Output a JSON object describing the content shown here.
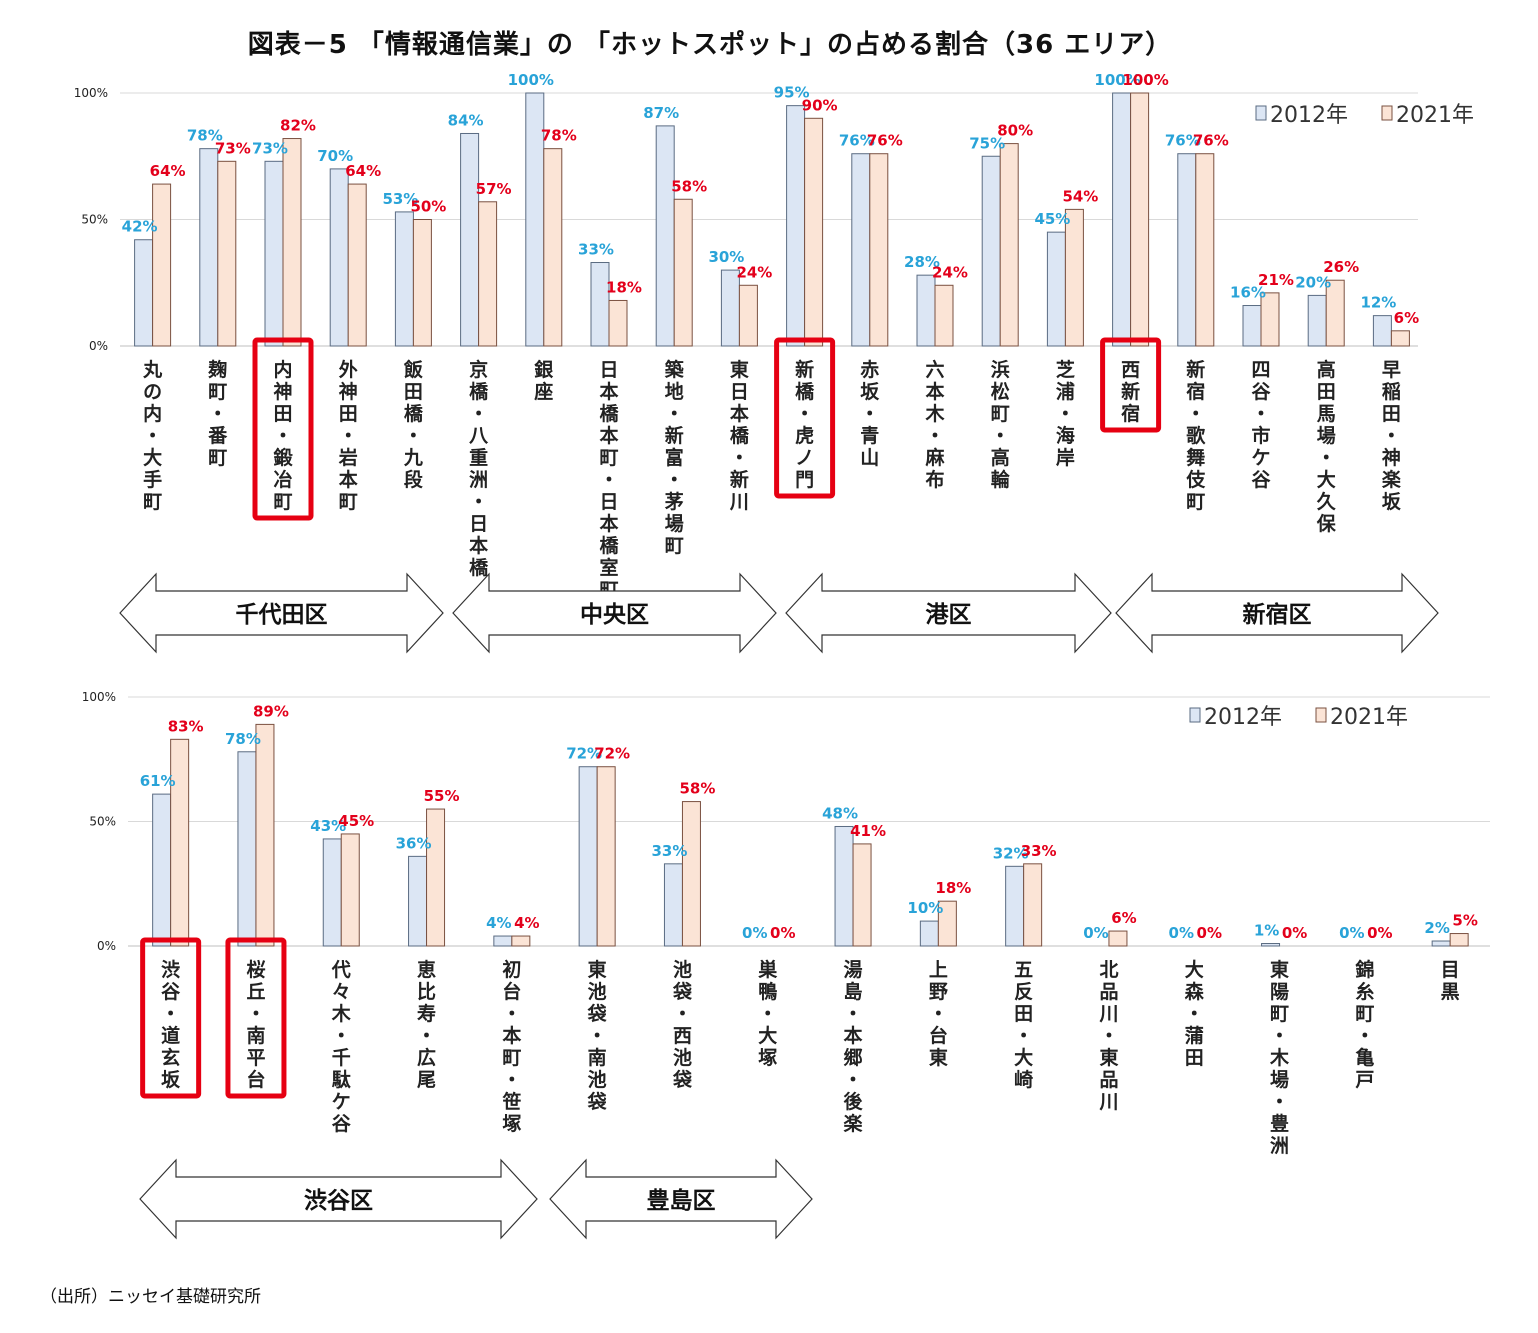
{
  "title": "図表－5 「情報通信業」の 「ホットスポット」の占める割合（36 エリア）",
  "source": "（出所）ニッセイ基礎研究所",
  "colors": {
    "s2012_fill": "#dce6f4",
    "s2012_stroke": "#5a6b82",
    "s2021_fill": "#fbe4d6",
    "s2021_stroke": "#7a5040",
    "label2012": "#29a3d8",
    "label2021": "#e3001b",
    "highlight": "#e60012",
    "grid": "#d9d9d9"
  },
  "chart_data": [
    {
      "type": "bar",
      "ylim": [
        0,
        100
      ],
      "y_ticks": [
        "0%",
        "50%",
        "100%"
      ],
      "legend": {
        "position": "top-right"
      },
      "series": [
        {
          "name": "2012年",
          "values": [
            42,
            78,
            73,
            70,
            53,
            84,
            100,
            33,
            87,
            30,
            95,
            76,
            28,
            75,
            45,
            100,
            76,
            16,
            20,
            12
          ]
        },
        {
          "name": "2021年",
          "values": [
            64,
            73,
            82,
            64,
            50,
            57,
            78,
            18,
            58,
            24,
            90,
            76,
            24,
            80,
            54,
            100,
            76,
            21,
            26,
            6
          ]
        }
      ],
      "labels_2012": [
        "42%",
        "78%",
        "73%",
        "70%",
        "53%",
        "84%",
        "100%",
        "33%",
        "87%",
        "30%",
        "95%",
        "76%",
        "28%",
        "75%",
        "45%",
        "100%",
        "76%",
        "16%",
        "20%",
        "12%"
      ],
      "labels_2021": [
        "64%",
        "73%",
        "82%",
        "64%",
        "50%",
        "57%",
        "78%",
        "18%",
        "58%",
        "24%",
        "90%",
        "76%",
        "24%",
        "80%",
        "54%",
        "100%",
        "76%",
        "21%",
        "26%",
        "6%"
      ],
      "categories": [
        "丸の内・大手町",
        "麹町・番町",
        "内神田・鍛冶町",
        "外神田・岩本町",
        "飯田橋・九段",
        "京橋・八重洲・日本橋",
        "銀座",
        "日本橋本町・日本橋室町",
        "築地・新富・茅場町",
        "東日本橋・新川",
        "新橋・虎ノ門",
        "赤坂・青山",
        "六本木・麻布",
        "浜松町・高輪",
        "芝浦・海岸",
        "西新宿",
        "新宿・歌舞伎町",
        "四谷・市ケ谷",
        "高田馬場・大久保",
        "早稲田・神楽坂"
      ],
      "highlighted": [
        "内神田・鍛冶町",
        "新橋・虎ノ門",
        "西新宿"
      ],
      "wards": [
        {
          "name": "千代田区",
          "from": 0,
          "to": 4
        },
        {
          "name": "中央区",
          "from": 5,
          "to": 9
        },
        {
          "name": "港区",
          "from": 10,
          "to": 14
        },
        {
          "name": "新宿区",
          "from": 15,
          "to": 19
        }
      ]
    },
    {
      "type": "bar",
      "ylim": [
        0,
        100
      ],
      "y_ticks": [
        "0%",
        "50%",
        "100%"
      ],
      "legend": {
        "position": "top-right"
      },
      "series": [
        {
          "name": "2012年",
          "values": [
            61,
            78,
            43,
            36,
            4,
            72,
            33,
            0,
            48,
            10,
            32,
            0,
            0,
            1,
            0,
            2
          ]
        },
        {
          "name": "2021年",
          "values": [
            83,
            89,
            45,
            55,
            4,
            72,
            58,
            0,
            41,
            18,
            33,
            6,
            0,
            0,
            0,
            5
          ]
        }
      ],
      "labels_2012": [
        "61%",
        "78%",
        "43%",
        "36%",
        "4%",
        "72%",
        "33%",
        "0%",
        "48%",
        "10%",
        "32%",
        "0%",
        "0%",
        "1%",
        "0%",
        "2%"
      ],
      "labels_2021": [
        "83%",
        "89%",
        "45%",
        "55%",
        "4%",
        "72%",
        "58%",
        "0%",
        "41%",
        "18%",
        "33%",
        "6%",
        "0%",
        "0%",
        "0%",
        "5%"
      ],
      "categories": [
        "渋谷・道玄坂",
        "桜丘・南平台",
        "代々木・千駄ケ谷",
        "恵比寿・広尾",
        "初台・本町・笹塚",
        "東池袋・南池袋",
        "池袋・西池袋",
        "巣鴨・大塚",
        "湯島・本郷・後楽",
        "上野・台東",
        "五反田・大崎",
        "北品川・東品川",
        "大森・蒲田",
        "東陽町・木場・豊洲",
        "錦糸町・亀戸",
        "目黒"
      ],
      "highlighted": [
        "渋谷・道玄坂",
        "桜丘・南平台"
      ],
      "wards": [
        {
          "name": "渋谷区",
          "from": 0,
          "to": 4
        },
        {
          "name": "豊島区",
          "from": 5,
          "to": 7
        }
      ]
    }
  ]
}
